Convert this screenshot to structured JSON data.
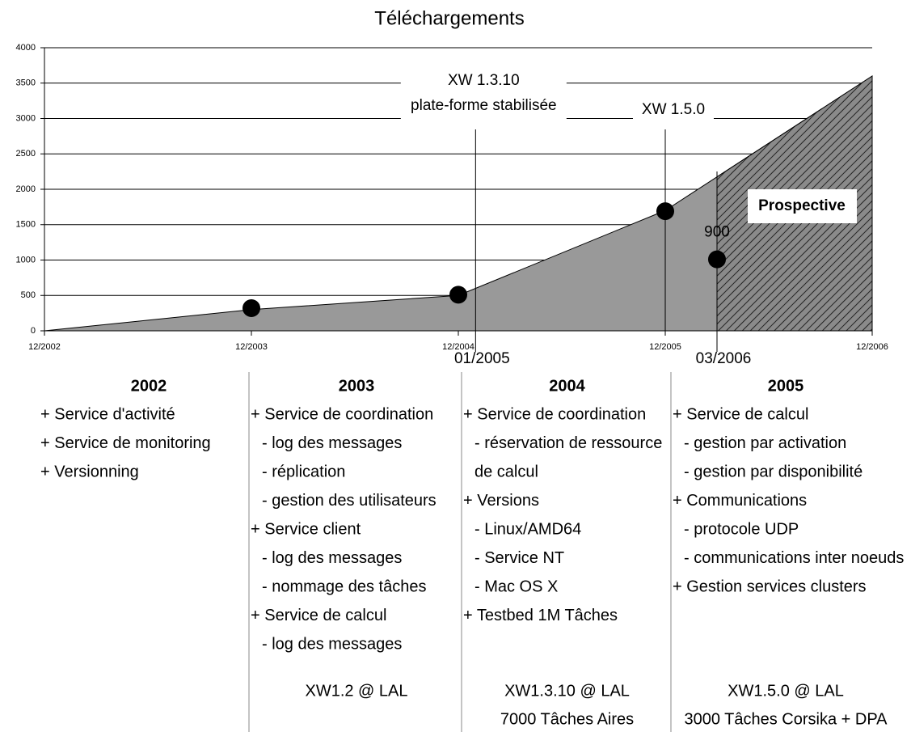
{
  "chart_data": {
    "type": "area",
    "title": "Téléchargements",
    "categories": [
      "12/2002",
      "12/2003",
      "12/2004",
      "12/2005",
      "12/2006"
    ],
    "values": [
      0,
      300,
      500,
      1700,
      3600
    ],
    "color": "#999999",
    "points": {
      "x": [
        "12/2003",
        "12/2004",
        "12/2005",
        "03/2006"
      ],
      "values": [
        320,
        510,
        1690,
        1010
      ],
      "color": "#000000"
    },
    "annotations": [
      "900"
    ],
    "ylim": [
      0,
      4000
    ],
    "yticks": [
      0,
      500,
      1000,
      1500,
      2000,
      2500,
      3000,
      3500,
      4000
    ],
    "grid": true,
    "markers": [
      {
        "label": "01/2005",
        "note": [
          "XW 1.3.10",
          "plate-forme stabilisée"
        ]
      },
      {
        "x": "12/2005",
        "note": [
          "XW 1.5.0"
        ]
      },
      {
        "label": "03/2006",
        "shade_label": "Prospective"
      }
    ],
    "columns": [
      {
        "year": "2002",
        "items": [
          "+ Service d'activité",
          "+ Service de monitoring",
          "+ Versionning"
        ],
        "footer": []
      },
      {
        "year": "2003",
        "items": [
          "+ Service de coordination",
          "- log des messages",
          "- réplication",
          "- gestion des utilisateurs",
          "+ Service client",
          "- log des messages",
          "- nommage des tâches",
          "+ Service de calcul",
          "- log des messages"
        ],
        "footer": [
          "XW1.2 @ LAL"
        ]
      },
      {
        "year": "2004",
        "items": [
          "+ Service de coordination",
          "- réservation de ressource",
          "de calcul",
          "+ Versions",
          "- Linux/AMD64",
          "- Service NT",
          "- Mac OS X",
          "+ Testbed 1M Tâches"
        ],
        "footer": [
          "XW1.3.10 @ LAL",
          "7000 Tâches Aires"
        ]
      },
      {
        "year": "2005",
        "items": [
          "+ Service de calcul",
          "- gestion par activation",
          "- gestion par disponibilité",
          "+ Communications",
          "- protocole UDP",
          "- communications inter noeuds",
          "+ Gestion services clusters"
        ],
        "footer": [
          "XW1.5.0 @ LAL",
          "3000 Tâches Corsika + DPA"
        ]
      }
    ]
  }
}
